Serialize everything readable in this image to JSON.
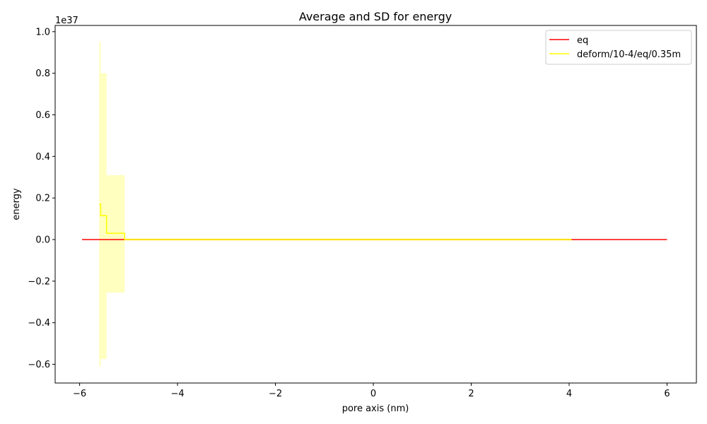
{
  "chart_data": {
    "type": "line",
    "title": "Average and SD for energy",
    "xlabel": "pore axis (nm)",
    "ylabel": "energy",
    "y_offset_label": "1e37",
    "xlim": [
      -6.5,
      6.6
    ],
    "ylim": [
      -0.69,
      1.03
    ],
    "x_ticks": [
      -6,
      -4,
      -2,
      0,
      2,
      4,
      6
    ],
    "x_tick_labels": [
      "−6",
      "−4",
      "−2",
      "0",
      "2",
      "4",
      "6"
    ],
    "y_ticks": [
      -0.6,
      -0.4,
      -0.2,
      0.0,
      0.2,
      0.4,
      0.6,
      0.8,
      1.0
    ],
    "y_tick_labels": [
      "−0.6",
      "−0.4",
      "−0.2",
      "0.0",
      "0.2",
      "0.4",
      "0.6",
      "0.8",
      "1.0"
    ],
    "grid": false,
    "legend_position": "top-right",
    "series": [
      {
        "name": "eq",
        "color": "#ff0000",
        "x": [
          -5.95,
          6.0
        ],
        "y": [
          0.0,
          0.0
        ]
      },
      {
        "name": "deform/10-4/eq/0.35m",
        "color": "#ffff00",
        "x": [
          -5.6,
          -5.57,
          -5.57,
          -5.45,
          -5.45,
          -5.08,
          -5.08,
          4.05
        ],
        "y": [
          0.17,
          0.17,
          0.115,
          0.115,
          0.03,
          0.03,
          0.0,
          0.0
        ]
      }
    ],
    "sd_band": {
      "series": "deform/10-4/eq/0.35m",
      "color": "#ffff00",
      "opacity": 0.25,
      "x": [
        -5.6,
        -5.57,
        -5.57,
        -5.45,
        -5.45,
        -5.08,
        -5.08,
        4.05
      ],
      "upper": [
        0.95,
        0.95,
        0.8,
        0.8,
        0.31,
        0.31,
        0.005,
        0.005
      ],
      "lower": [
        -0.61,
        -0.61,
        -0.575,
        -0.575,
        -0.255,
        -0.255,
        -0.005,
        -0.005
      ]
    }
  }
}
